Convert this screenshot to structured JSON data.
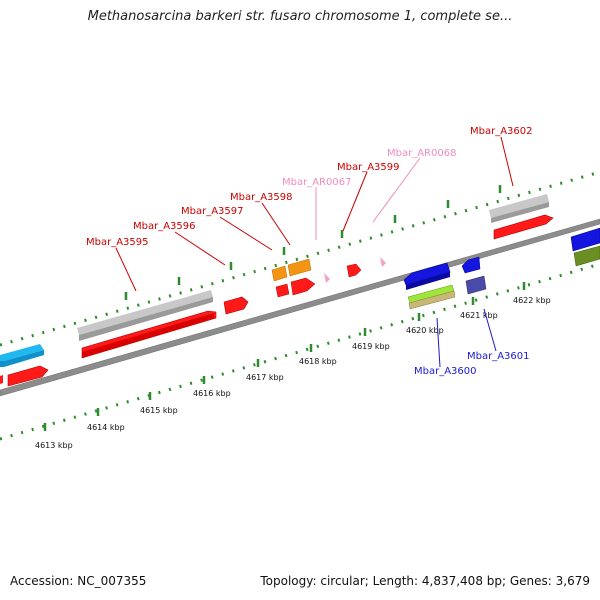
{
  "title": "Methanosarcina barkeri str. fusaro chromosome 1, complete se...",
  "footer": {
    "accession": "Accession: NC_007355",
    "summary": "Topology: circular; Length: 4,837,408 bp; Genes: 3,679"
  },
  "scale_labels": [
    "4613 kbp",
    "4614 kbp",
    "4615 kbp",
    "4616 kbp",
    "4617 kbp",
    "4618 kbp",
    "4619 kbp",
    "4620 kbp",
    "4621 kbp",
    "4622 kbp"
  ],
  "gene_labels": {
    "Mbar_A3595": "Mbar_A3595",
    "Mbar_A3596": "Mbar_A3596",
    "Mbar_A3597": "Mbar_A3597",
    "Mbar_A3598": "Mbar_A3598",
    "Mbar_AR0067": "Mbar_AR0067",
    "Mbar_A3599": "Mbar_A3599",
    "Mbar_AR0068": "Mbar_AR0068",
    "Mbar_A3602": "Mbar_A3602",
    "Mbar_A3600": "Mbar_A3600",
    "Mbar_A3601": "Mbar_A3601"
  },
  "colors": {
    "backbone": "#8c8c8c",
    "tick_dots": "#2e8b2e",
    "gene_red": "#ff1a1a",
    "gene_red_label": "#cc0000",
    "trna_pink": "#f2a0c8",
    "trna_label": "#f08cc0",
    "gene_grey": "#c6c6c6",
    "gene_cyan": "#20b8f0",
    "gene_orange": "#f39512",
    "gene_blue": "#1515e0",
    "gene_blue_label": "#1a1ad0",
    "gene_navy": "#4a4aa8",
    "gene_lime": "#9ee63a",
    "gene_tan": "#c8b878",
    "gene_olive": "#6b8e23"
  }
}
